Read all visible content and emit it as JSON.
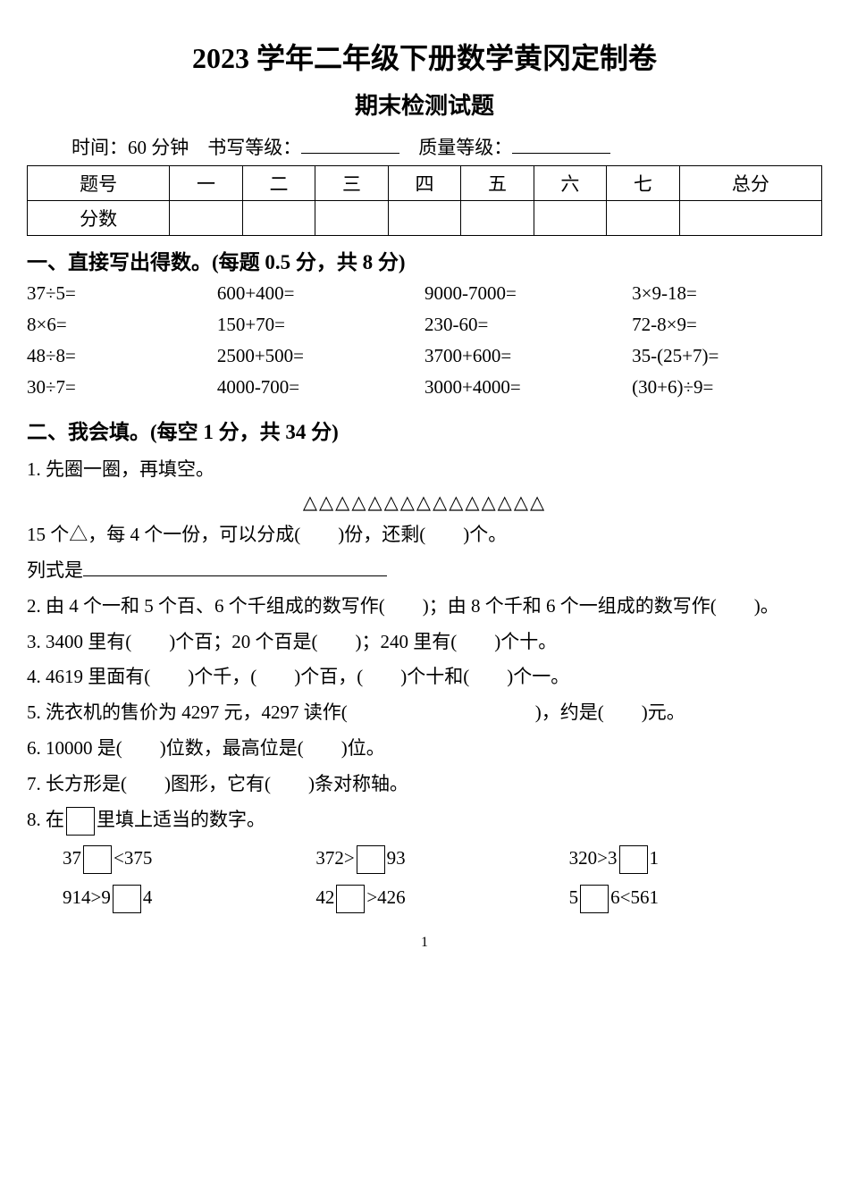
{
  "title": "2023 学年二年级下册数学黄冈定制卷",
  "subtitle": "期末检测试题",
  "info": {
    "time_label": "时间：60 分钟",
    "writing_label": "书写等级：",
    "quality_label": "质量等级："
  },
  "score_table": {
    "headers": [
      "题号",
      "一",
      "二",
      "三",
      "四",
      "五",
      "六",
      "七",
      "总分"
    ],
    "row_label": "分数"
  },
  "section1": {
    "heading": "一、直接写出得数。(每题 0.5 分，共 8 分)",
    "items": [
      "37÷5=",
      "600+400=",
      "9000-7000=",
      "3×9-18=",
      "8×6=",
      "150+70=",
      "230-60=",
      "72-8×9=",
      "48÷8=",
      "2500+500=",
      "3700+600=",
      "35-(25+7)=",
      "30÷7=",
      "4000-700=",
      "3000+4000=",
      "(30+6)÷9="
    ]
  },
  "section2": {
    "heading": "二、我会填。(每空 1 分，共 34 分)",
    "q1a": "1. 先圈一圈，再填空。",
    "triangles": "△△△△△△△△△△△△△△△",
    "q1b": "15 个△，每 4 个一份，可以分成(　　)份，还剩(　　)个。",
    "q1c": "列式是",
    "q2": "2. 由 4 个一和 5 个百、6 个千组成的数写作(　　)；由 8 个千和 6 个一组成的数写作(　　)。",
    "q3": "3. 3400 里有(　　)个百；20 个百是(　　)；240 里有(　　)个十。",
    "q4": "4. 4619 里面有(　　)个千，(　　)个百，(　　)个十和(　　)个一。",
    "q5": "5. 洗衣机的售价为 4297 元，4297 读作(　　　　　　　　　　)，约是(　　)元。",
    "q6": "6. 10000 是(　　)位数，最高位是(　　)位。",
    "q7": "7. 长方形是(　　)图形，它有(　　)条对称轴。",
    "q8": "8. 在",
    "q8b": "里填上适当的数字。",
    "fill": {
      "r1c1a": "37",
      "r1c1b": "<375",
      "r1c2a": "372>",
      "r1c2b": "93",
      "r1c3a": "320>3",
      "r1c3b": "1",
      "r2c1a": "914>9",
      "r2c1b": "4",
      "r2c2a": "42",
      "r2c2b": ">426",
      "r2c3a": "5",
      "r2c3b": "6<561"
    }
  },
  "page_number": "1"
}
